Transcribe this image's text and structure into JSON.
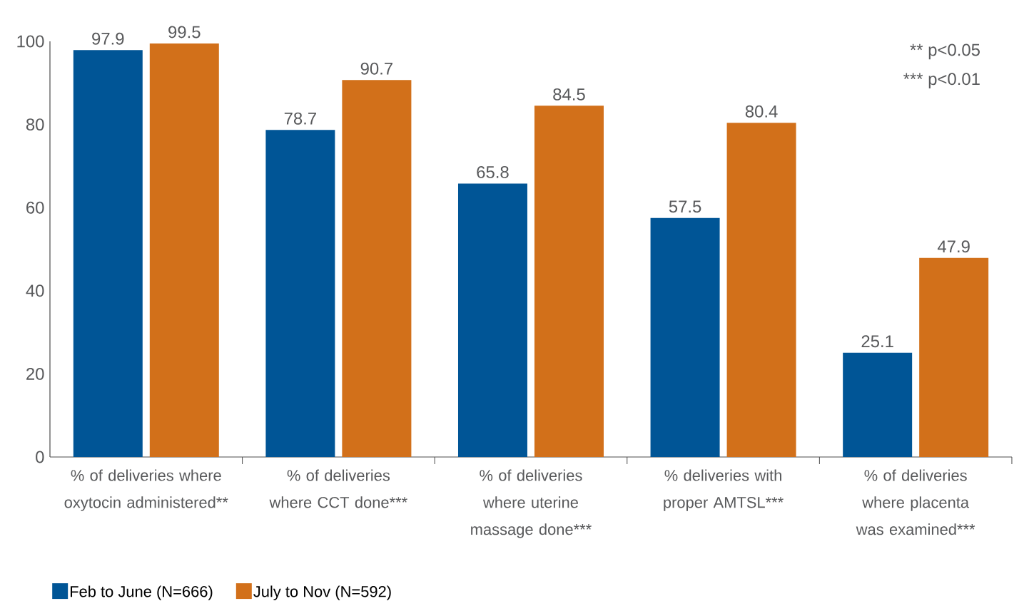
{
  "chart_data": {
    "type": "bar",
    "categories": [
      "% of deliveries where oxytocin administered**",
      "% of deliveries where CCT done***",
      "% of deliveries where uterine massage done***",
      "% deliveries with proper AMTSL***",
      "% of deliveries where placenta was examined***"
    ],
    "series": [
      {
        "name": "Feb to June (N=666)",
        "color": "#005596",
        "values": [
          97.9,
          78.7,
          65.8,
          57.5,
          25.1
        ]
      },
      {
        "name": "July to Nov (N=592)",
        "color": "#d2701a",
        "values": [
          99.5,
          90.7,
          84.5,
          80.4,
          47.9
        ]
      }
    ],
    "ylim": [
      0,
      100
    ],
    "yticks": [
      0,
      20,
      40,
      60,
      80,
      100
    ],
    "data_labels": true,
    "grid": false,
    "legend": "bottom",
    "annotations": [
      "**   p<0.05",
      "***   p<0.01"
    ]
  }
}
